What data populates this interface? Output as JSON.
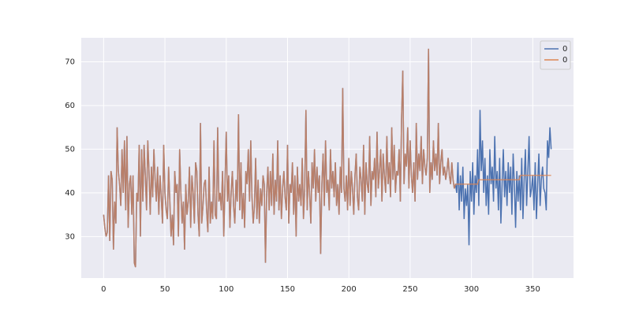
{
  "chart_data": {
    "type": "line",
    "xlim": [
      -18.25,
      383.25
    ],
    "ylim": [
      20.5,
      75.5
    ],
    "xticks": [
      0,
      50,
      100,
      150,
      200,
      250,
      300,
      350
    ],
    "yticks": [
      30,
      40,
      50,
      60,
      70
    ],
    "grid": true,
    "legend": "upper right",
    "series": [
      {
        "name": "0",
        "color": "#4c72b0",
        "values": [
          35,
          32,
          30,
          31,
          44,
          29,
          45,
          43,
          27,
          38,
          33,
          55,
          45,
          42,
          37,
          50,
          40,
          52,
          36,
          53,
          32,
          42,
          44,
          35,
          44,
          24,
          23,
          40,
          38,
          51,
          30,
          50,
          38,
          51,
          44,
          36,
          52,
          45,
          35,
          46,
          39,
          50,
          43,
          38,
          46,
          35,
          44,
          39,
          33,
          51,
          40,
          36,
          34,
          46,
          38,
          30,
          35,
          28,
          45,
          40,
          42,
          30,
          50,
          40,
          33,
          38,
          27,
          42,
          35,
          38,
          46,
          32,
          44,
          40,
          33,
          47,
          45,
          35,
          30,
          56,
          33,
          37,
          42,
          43,
          36,
          31,
          46,
          33,
          38,
          34,
          52,
          35,
          34,
          55,
          38,
          40,
          36,
          45,
          30,
          42,
          54,
          38,
          44,
          32,
          40,
          45,
          37,
          33,
          43,
          38,
          58,
          36,
          47,
          34,
          40,
          32,
          45,
          42,
          50,
          38,
          52,
          39,
          33,
          37,
          48,
          34,
          43,
          33,
          41,
          37,
          44,
          42,
          24,
          40,
          46,
          36,
          45,
          37,
          49,
          35,
          43,
          38,
          52,
          36,
          44,
          34,
          41,
          45,
          39,
          36,
          51,
          33,
          42,
          40,
          47,
          35,
          44,
          30,
          46,
          38,
          42,
          37,
          48,
          34,
          41,
          59,
          36,
          45,
          40,
          33,
          47,
          41,
          50,
          38,
          46,
          40,
          44,
          26,
          42,
          49,
          37,
          52,
          40,
          43,
          36,
          50,
          41,
          45,
          39,
          47,
          37,
          42,
          35,
          46,
          40,
          64,
          41,
          38,
          44,
          36,
          48,
          37,
          45,
          41,
          35,
          44,
          49,
          39,
          36,
          46,
          43,
          38,
          51,
          35,
          47,
          42,
          40,
          53,
          37,
          45,
          43,
          48,
          39,
          54,
          41,
          45,
          50,
          38,
          49,
          44,
          40,
          53,
          42,
          47,
          39,
          55,
          43,
          51,
          40,
          45,
          44,
          50,
          38,
          57,
          68,
          42,
          49,
          46,
          55,
          41,
          52,
          44,
          40,
          47,
          38,
          56,
          43,
          49,
          45,
          53,
          42,
          50,
          46,
          44,
          48,
          73,
          40,
          47,
          43,
          52,
          45,
          49,
          44,
          56,
          42,
          47,
          50,
          44,
          46,
          43,
          45,
          48,
          44,
          42,
          47,
          43,
          41,
          42,
          40,
          47,
          36,
          44,
          38,
          46,
          34,
          41,
          37,
          42,
          28,
          45,
          38,
          47,
          35,
          44,
          40,
          50,
          37,
          59,
          45,
          52,
          40,
          48,
          37,
          44,
          35,
          50,
          42,
          46,
          38,
          53,
          41,
          45,
          36,
          48,
          33,
          42,
          50,
          39,
          45,
          37,
          47,
          40,
          46,
          35,
          49,
          42,
          32,
          45,
          38,
          44,
          36,
          48,
          34,
          43,
          50,
          37,
          45,
          53,
          39,
          41,
          44,
          36,
          47,
          34,
          42,
          49,
          37,
          43,
          46,
          41,
          40,
          36,
          52,
          48,
          55,
          50
        ]
      },
      {
        "name": "0",
        "color": "#dd8452",
        "values": [
          35,
          32,
          30,
          31,
          44,
          29,
          45,
          43,
          27,
          38,
          33,
          55,
          45,
          42,
          37,
          50,
          40,
          52,
          36,
          53,
          32,
          42,
          44,
          35,
          44,
          24,
          23,
          40,
          38,
          51,
          30,
          50,
          38,
          51,
          44,
          36,
          52,
          45,
          35,
          46,
          39,
          50,
          43,
          38,
          46,
          35,
          44,
          39,
          33,
          51,
          40,
          36,
          34,
          46,
          38,
          30,
          35,
          28,
          45,
          40,
          42,
          30,
          50,
          40,
          33,
          38,
          27,
          42,
          35,
          38,
          46,
          32,
          44,
          40,
          33,
          47,
          45,
          35,
          30,
          56,
          33,
          37,
          42,
          43,
          36,
          31,
          46,
          33,
          38,
          34,
          52,
          35,
          34,
          55,
          38,
          40,
          36,
          45,
          30,
          42,
          54,
          38,
          44,
          32,
          40,
          45,
          37,
          33,
          43,
          38,
          58,
          36,
          47,
          34,
          40,
          32,
          45,
          42,
          50,
          38,
          52,
          39,
          33,
          37,
          48,
          34,
          43,
          33,
          41,
          37,
          44,
          42,
          24,
          40,
          46,
          36,
          45,
          37,
          49,
          35,
          43,
          38,
          52,
          36,
          44,
          34,
          41,
          45,
          39,
          36,
          51,
          33,
          42,
          40,
          47,
          35,
          44,
          30,
          46,
          38,
          42,
          37,
          48,
          34,
          41,
          59,
          36,
          45,
          40,
          33,
          47,
          41,
          50,
          38,
          46,
          40,
          44,
          26,
          42,
          49,
          37,
          52,
          40,
          43,
          36,
          50,
          41,
          45,
          39,
          47,
          37,
          42,
          35,
          46,
          40,
          64,
          41,
          38,
          44,
          36,
          48,
          37,
          45,
          41,
          35,
          44,
          49,
          39,
          36,
          46,
          43,
          38,
          51,
          35,
          47,
          42,
          40,
          53,
          37,
          45,
          43,
          48,
          39,
          54,
          41,
          45,
          50,
          38,
          49,
          44,
          40,
          53,
          42,
          47,
          39,
          55,
          43,
          51,
          40,
          45,
          44,
          50,
          38,
          57,
          68,
          42,
          49,
          46,
          55,
          41,
          52,
          44,
          40,
          47,
          38,
          56,
          43,
          49,
          45,
          53,
          42,
          50,
          46,
          44,
          48,
          73,
          40,
          47,
          43,
          52,
          45,
          49,
          44,
          56,
          42,
          47,
          50,
          44,
          46,
          43,
          45,
          48,
          44,
          42,
          47,
          43,
          41,
          42,
          42,
          42,
          42,
          42,
          42,
          42,
          42,
          42,
          42,
          42,
          42,
          42,
          42,
          42,
          42,
          42,
          42,
          42,
          43,
          43,
          43,
          43,
          43,
          43,
          43,
          43,
          43,
          43,
          43,
          43,
          43,
          43,
          43,
          43,
          43,
          43,
          43,
          43,
          43,
          43,
          43,
          43,
          43,
          43,
          43,
          43,
          43,
          43,
          43,
          43,
          43,
          43,
          44,
          44,
          44,
          44,
          44,
          44,
          44,
          44,
          44,
          44,
          44,
          44,
          44,
          44,
          44,
          44,
          44,
          44,
          44,
          44,
          44,
          44,
          44,
          44,
          44,
          44
        ]
      }
    ]
  }
}
